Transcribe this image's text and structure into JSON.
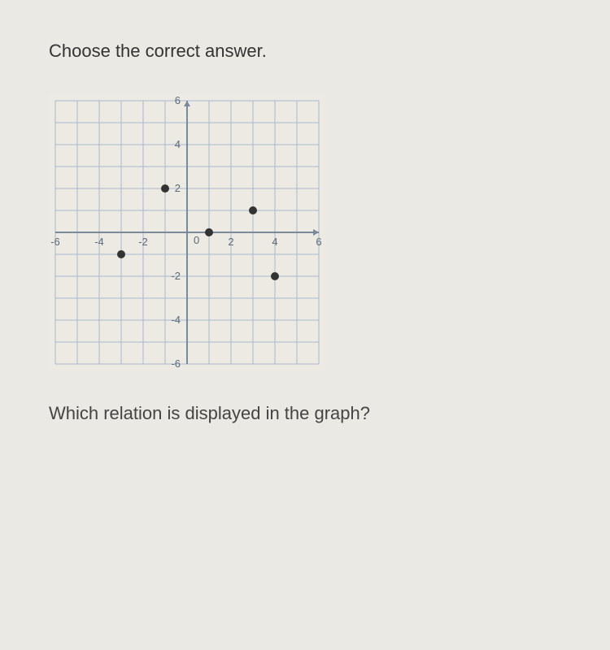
{
  "prompt": "Choose the correct answer.",
  "question": "Which relation is displayed in the graph?",
  "graph": {
    "type": "scatter",
    "xlim": [
      -6,
      6
    ],
    "ylim": [
      -6,
      6
    ],
    "xtick_step": 2,
    "ytick_step": 2,
    "x_ticks": [
      -6,
      -4,
      -2,
      2,
      4,
      6
    ],
    "y_ticks": [
      -6,
      -4,
      -2,
      2,
      4,
      6
    ],
    "origin_label": "0",
    "grid_color": "#a9b8cc",
    "axis_color": "#7a8a9a",
    "background_color": "#eceae3",
    "point_color": "#333333",
    "point_radius": 5,
    "label_fontsize": 13,
    "points": [
      {
        "x": -3,
        "y": -1
      },
      {
        "x": -1,
        "y": 2
      },
      {
        "x": 1,
        "y": 0
      },
      {
        "x": 3,
        "y": 1
      },
      {
        "x": 4,
        "y": -2
      }
    ]
  }
}
